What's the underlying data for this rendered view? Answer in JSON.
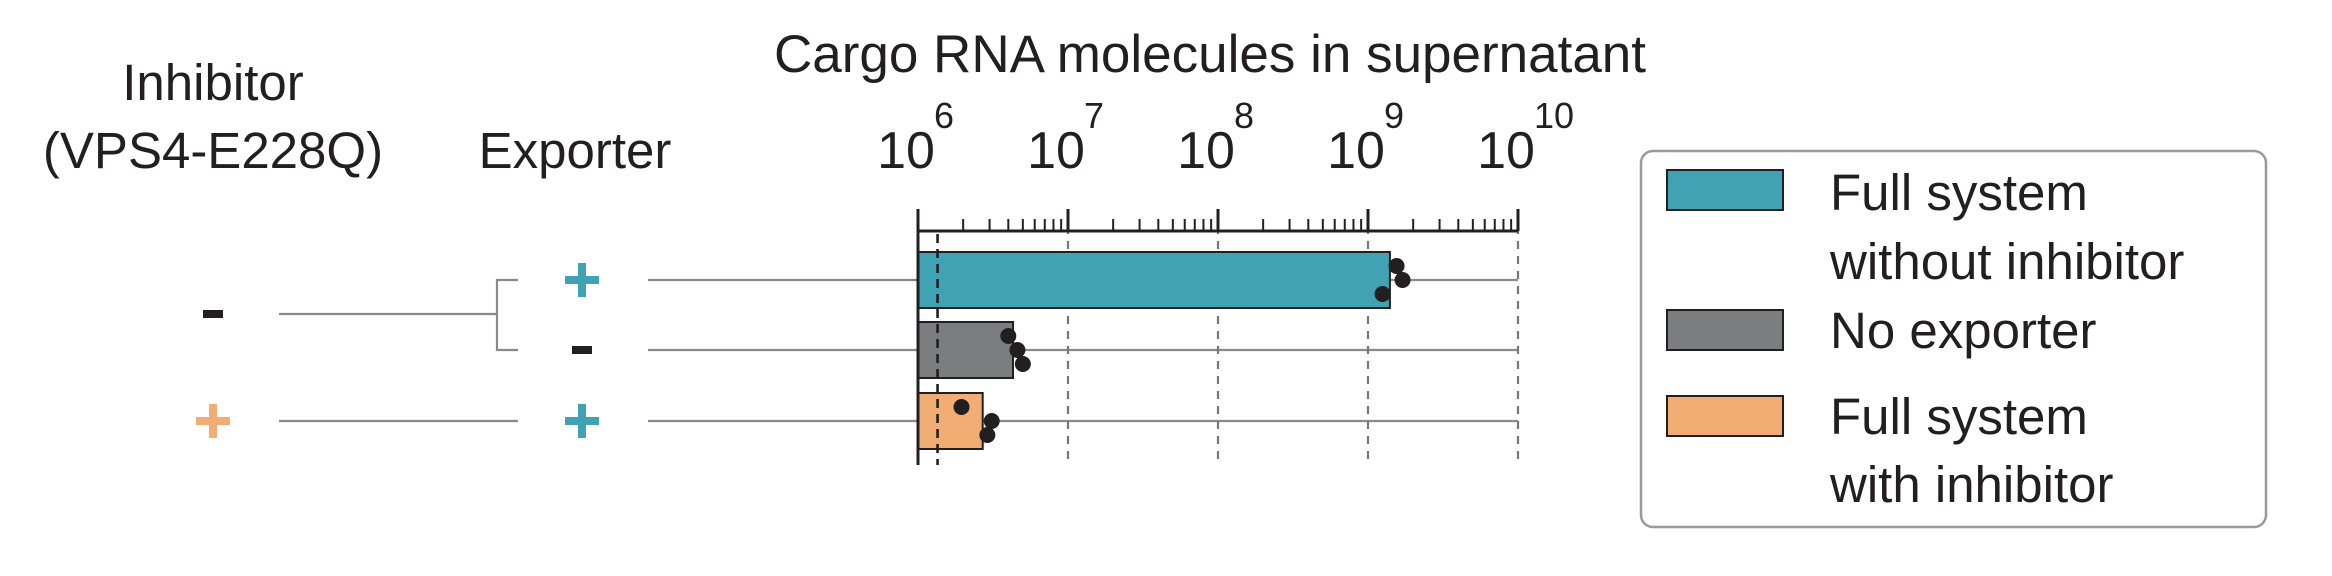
{
  "chart_data": {
    "type": "bar",
    "orientation": "horizontal",
    "title": "Cargo RNA molecules in supernatant",
    "xscale": "log",
    "xlim": [
      1000000,
      10000000000
    ],
    "x_ticks": [
      {
        "base": "10",
        "exp": "6"
      },
      {
        "base": "10",
        "exp": "7"
      },
      {
        "base": "10",
        "exp": "8"
      },
      {
        "base": "10",
        "exp": "9"
      },
      {
        "base": "10",
        "exp": "10"
      }
    ],
    "grid": "vertical dashed at decades",
    "detection_limit": 1350000,
    "column_headers": {
      "inhibitor_line1": "Inhibitor",
      "inhibitor_line2": "(VPS4-E228Q)",
      "exporter": "Exporter"
    },
    "rows": [
      {
        "inhibitor": "-",
        "exporter": "+",
        "series": "Full system without inhibitor",
        "color": "#41a2b3",
        "value": 1400000000,
        "points": [
          1550000000,
          1700000000,
          1250000000
        ]
      },
      {
        "inhibitor": "-",
        "exporter": "-",
        "series": "No exporter",
        "color": "#7b7e7f",
        "value": 4300000,
        "points": [
          4000000,
          4600000,
          5000000
        ]
      },
      {
        "inhibitor": "+",
        "exporter": "+",
        "series": "Full system with inhibitor",
        "color": "#f2ad75",
        "value": 2700000,
        "points": [
          1950000,
          3100000,
          2900000
        ]
      }
    ],
    "legend": {
      "position": "right",
      "entries": [
        {
          "line1": "Full system",
          "line2": "without inhibitor",
          "color": "#41a2b3"
        },
        {
          "line1": "No exporter",
          "line2": "",
          "color": "#7b7e7f"
        },
        {
          "line1": "Full system",
          "line2": "with inhibitor",
          "color": "#f2ad75"
        }
      ]
    },
    "colors": {
      "plus_exporter": "#41a2b3",
      "plus_inhibitor": "#f2ad75",
      "minus": "#231f20"
    }
  }
}
